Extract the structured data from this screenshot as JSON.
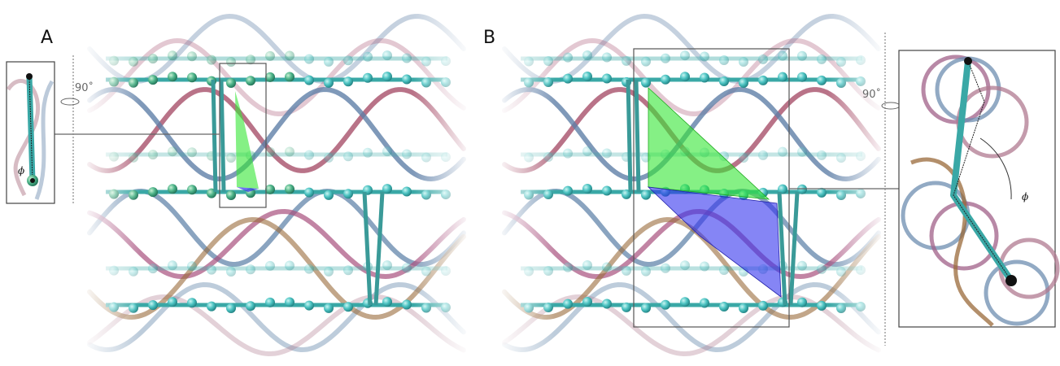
{
  "panels": [
    {
      "label": "A",
      "rotation": "90˚",
      "angle": "ϕ"
    },
    {
      "label": "B",
      "rotation": "90˚",
      "angle": "ϕ"
    }
  ]
}
